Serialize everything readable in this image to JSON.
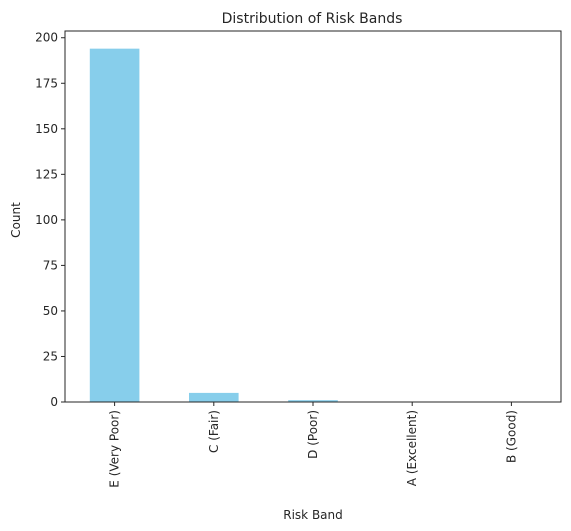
{
  "chart_data": {
    "type": "bar",
    "title": "Distribution of Risk Bands",
    "xlabel": "Risk Band",
    "ylabel": "Count",
    "categories": [
      "E (Very Poor)",
      "C (Fair)",
      "D (Poor)",
      "A (Excellent)",
      "B (Good)"
    ],
    "values": [
      194,
      5,
      1,
      0,
      0
    ],
    "ylim": [
      0,
      203.7
    ],
    "yticks": [
      0,
      25,
      50,
      75,
      100,
      125,
      150,
      175,
      200
    ],
    "bar_color": "#87ceeb",
    "grid": false,
    "legend": "none"
  }
}
